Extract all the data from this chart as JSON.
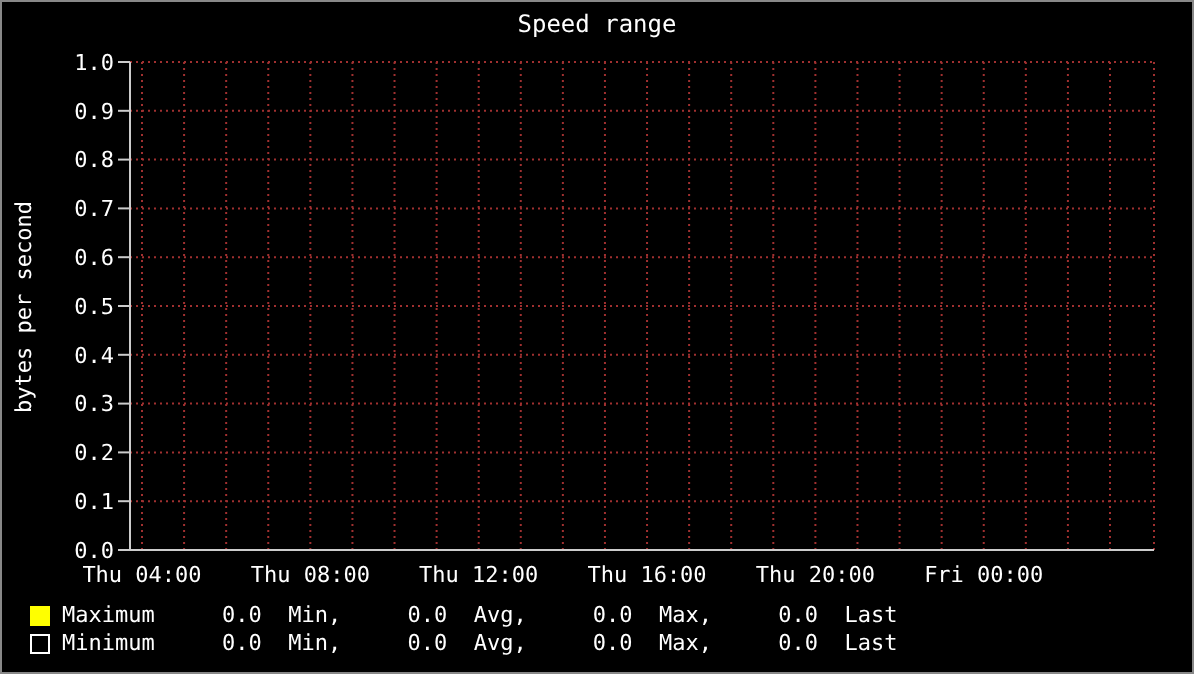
{
  "chart_data": {
    "type": "line",
    "title": "Speed range",
    "ylabel": "bytes per second",
    "categories": [
      "Thu 04:00",
      null,
      null,
      null,
      "Thu 08:00",
      null,
      null,
      null,
      "Thu 12:00",
      null,
      null,
      null,
      "Thu 16:00",
      null,
      null,
      null,
      "Thu 20:00",
      null,
      null,
      null,
      "Fri 00:00",
      null,
      null,
      null
    ],
    "series": [
      {
        "name": "Maximum",
        "color": "#ffff00",
        "values": [
          null,
          null,
          null,
          null,
          null,
          null,
          null,
          null,
          null,
          null,
          null,
          null,
          null,
          null,
          null,
          null,
          null,
          null,
          null,
          null,
          null,
          null,
          null,
          null
        ]
      },
      {
        "name": "Minimum",
        "color": "#ffffff",
        "values": [
          null,
          null,
          null,
          null,
          null,
          null,
          null,
          null,
          null,
          null,
          null,
          null,
          null,
          null,
          null,
          null,
          null,
          null,
          null,
          null,
          null,
          null,
          null,
          null
        ]
      }
    ],
    "annotations": [
      "0.0  Min,     0.0  Avg,     0.0  Max,     0.0  Last",
      "0.0  Min,     0.0  Avg,     0.0  Max,     0.0  Last"
    ],
    "ylim": [
      0,
      1
    ],
    "yticks": [
      {
        "value": 0,
        "label": "0.0"
      },
      0.1,
      0.2,
      0.3,
      0.4,
      0.5,
      0.6,
      0.7,
      0.8,
      0.9,
      {
        "value": 1,
        "label": "1.0"
      }
    ],
    "grid": true,
    "legend": "bottom"
  }
}
